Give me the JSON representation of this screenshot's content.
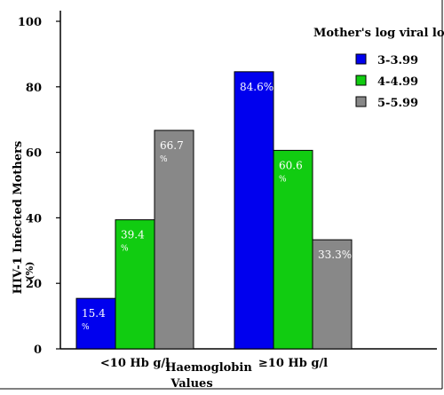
{
  "chart_data": {
    "type": "bar",
    "ylabel": "HIV-1 Infected Mothers",
    "ylabel_unit": "(%)",
    "xlabel_line1": "Haemoglobin",
    "xlabel_line2": "Values",
    "ylim": [
      0,
      100
    ],
    "yticks": [
      "0",
      "20",
      "40",
      "60",
      "80",
      "100"
    ],
    "categories": [
      "<10 Hb g/l",
      "≥10 Hb g/l"
    ],
    "legend_title": "Mother's log viral load",
    "legend_position": "top-right",
    "grid": false,
    "series": [
      {
        "name": "3-3.99",
        "color": "#0000ee",
        "values": [
          15.4,
          84.6
        ],
        "labels": [
          [
            "15.4",
            "%"
          ],
          [
            "84.6%"
          ]
        ]
      },
      {
        "name": "4-4.99",
        "color": "#11cc11",
        "values": [
          39.4,
          60.6
        ],
        "labels": [
          [
            "39.4",
            "%"
          ],
          [
            "60.6",
            "%"
          ]
        ]
      },
      {
        "name": "5-5.99",
        "color": "#888888",
        "values": [
          66.7,
          33.3
        ],
        "labels": [
          [
            "66.7",
            "%"
          ],
          [
            "33.3%"
          ]
        ]
      }
    ]
  }
}
